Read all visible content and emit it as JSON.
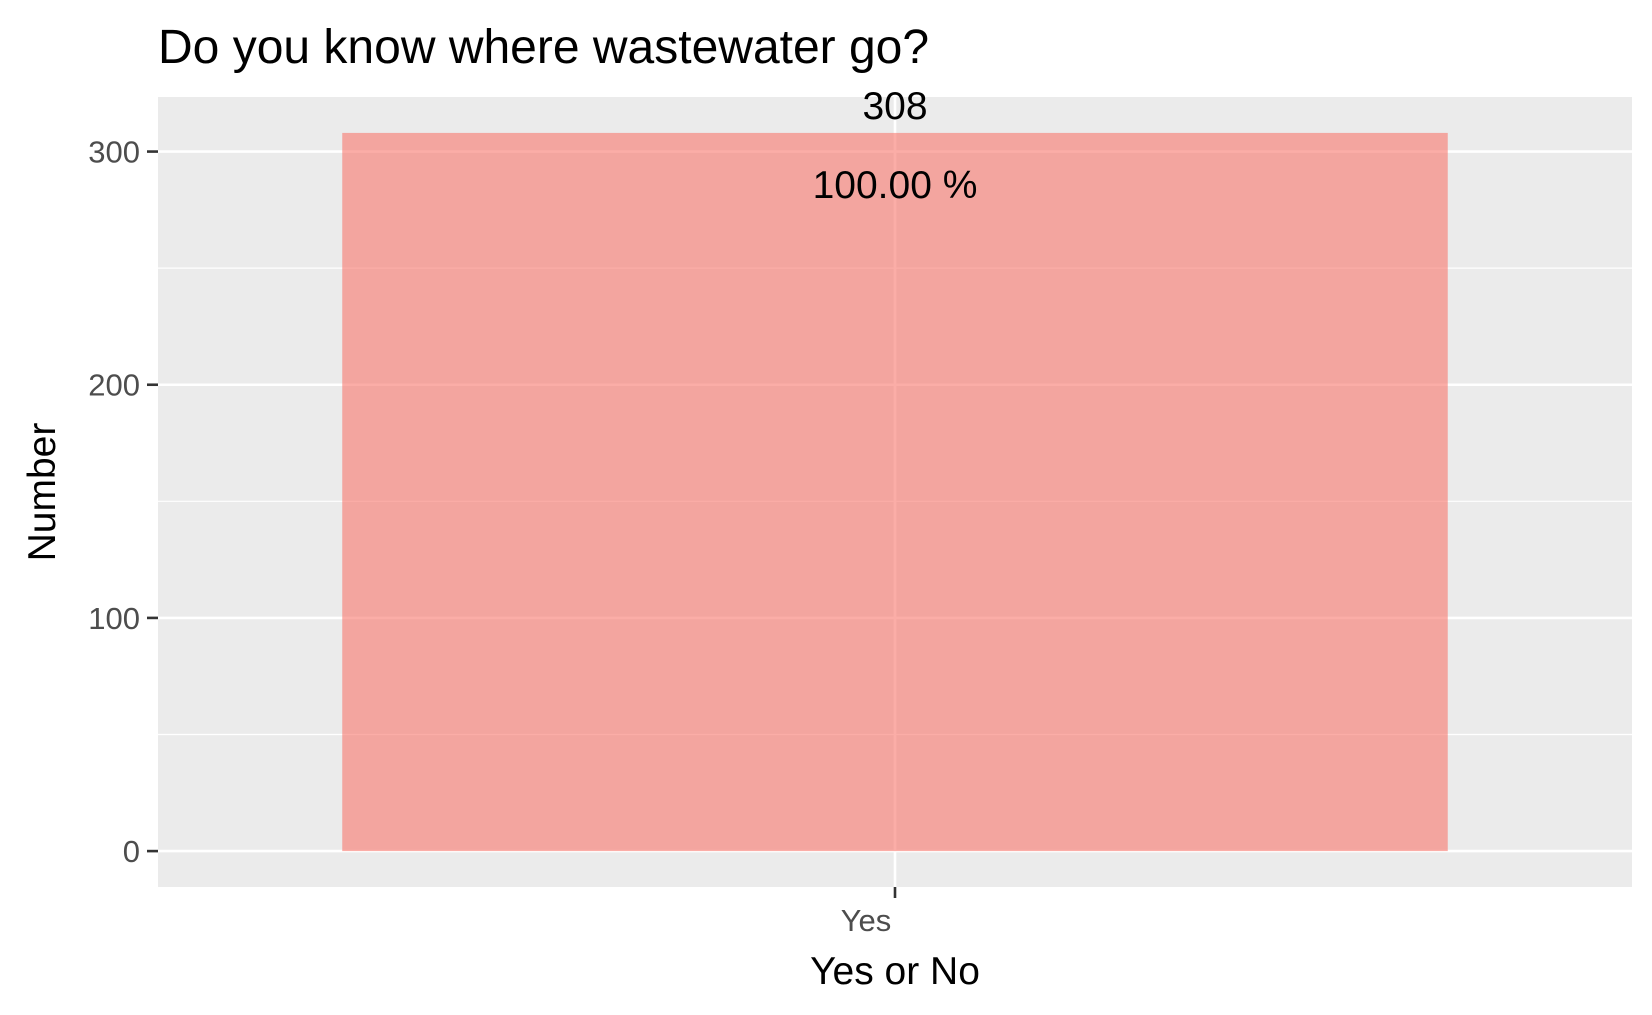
{
  "chart_data": {
    "type": "bar",
    "title": "Do you know where wastewater go?",
    "xlabel": "Yes or No",
    "ylabel": "Number",
    "categories": [
      "Yes"
    ],
    "values": [
      308
    ],
    "count_labels": [
      "308"
    ],
    "percent_labels": [
      "100.00 %"
    ],
    "y_ticks": [
      0,
      100,
      200,
      300
    ],
    "ylim": [
      -15.4,
      323.4
    ],
    "grid": true,
    "legend": "none",
    "colors": {
      "bar": "#F8766D",
      "panel": "#EBEBEB",
      "grid": "#FFFFFF",
      "tick_text": "#4D4D4D"
    }
  }
}
